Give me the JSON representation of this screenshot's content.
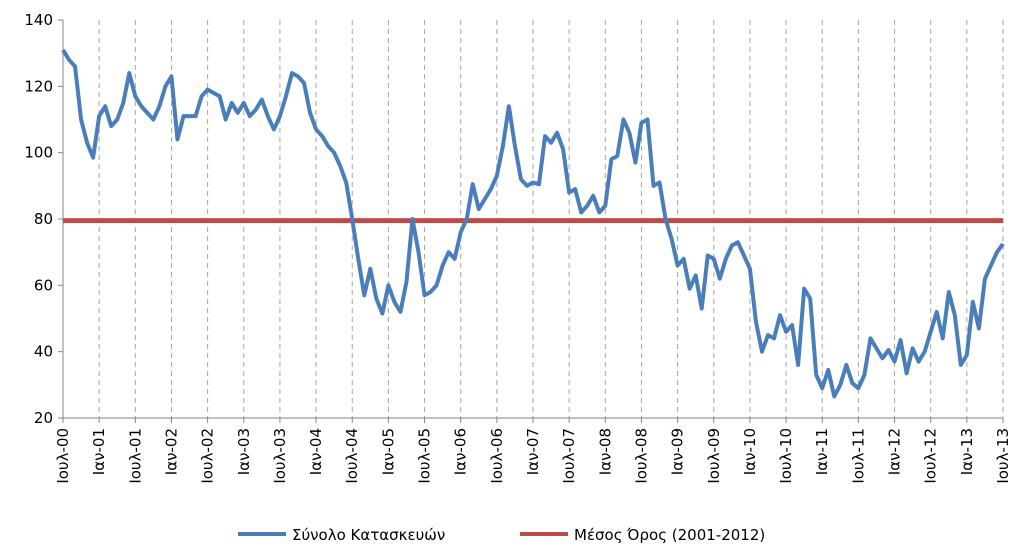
{
  "chart_data": {
    "type": "line",
    "categories": [
      "Ιουλ-00",
      null,
      null,
      null,
      null,
      null,
      "Ιαν-01",
      null,
      null,
      null,
      null,
      null,
      "Ιουλ-01",
      null,
      null,
      null,
      null,
      null,
      "Ιαν-02",
      null,
      null,
      null,
      null,
      null,
      "Ιουλ-02",
      null,
      null,
      null,
      null,
      null,
      "Ιαν-03",
      null,
      null,
      null,
      null,
      null,
      "Ιουλ-03",
      null,
      null,
      null,
      null,
      null,
      "Ιαν-04",
      null,
      null,
      null,
      null,
      null,
      "Ιουλ-04",
      null,
      null,
      null,
      null,
      null,
      "Ιαν-05",
      null,
      null,
      null,
      null,
      null,
      "Ιουλ-05",
      null,
      null,
      null,
      null,
      null,
      "Ιαν-06",
      null,
      null,
      null,
      null,
      null,
      "Ιουλ-06",
      null,
      null,
      null,
      null,
      null,
      "Ιαν-07",
      null,
      null,
      null,
      null,
      null,
      "Ιουλ-07",
      null,
      null,
      null,
      null,
      null,
      "Ιαν-08",
      null,
      null,
      null,
      null,
      null,
      "Ιουλ-08",
      null,
      null,
      null,
      null,
      null,
      "Ιαν-09",
      null,
      null,
      null,
      null,
      null,
      "Ιουλ-09",
      null,
      null,
      null,
      null,
      null,
      "Ιαν-10",
      null,
      null,
      null,
      null,
      null,
      "Ιουλ-10",
      null,
      null,
      null,
      null,
      null,
      "Ιαν-11",
      null,
      null,
      null,
      null,
      null,
      "Ιουλ-11",
      null,
      null,
      null,
      null,
      null,
      "Ιαν-12",
      null,
      null,
      null,
      null,
      null,
      "Ιουλ-12",
      null,
      null,
      null,
      null,
      null,
      "Ιαν-13",
      null,
      null,
      null,
      null,
      null,
      "Ιουλ-13"
    ],
    "series": [
      {
        "name": "Σύνολο Κατασκευών",
        "color": "#4a7ebb",
        "values": [
          131,
          128,
          126,
          110,
          103,
          98.5,
          111,
          114,
          108,
          110,
          115,
          124,
          117,
          114,
          112,
          110,
          114,
          120,
          123,
          104,
          111,
          111,
          111,
          117,
          119,
          118,
          117,
          110,
          115,
          112,
          115,
          111,
          113,
          116,
          111,
          107,
          111,
          117,
          124,
          123,
          121,
          112,
          107,
          105,
          102,
          100,
          96,
          91,
          80,
          68,
          57,
          65,
          56,
          51.5,
          60,
          55,
          52,
          61,
          80,
          70,
          57,
          58,
          60,
          66,
          70,
          68,
          76,
          80,
          90.5,
          83,
          86,
          89,
          93,
          102,
          114,
          102,
          92,
          90,
          91,
          90.5,
          105,
          103,
          106,
          101,
          88,
          89,
          82,
          84,
          87,
          82,
          84,
          98,
          99,
          110,
          106,
          97,
          109,
          110,
          90,
          91,
          80,
          74,
          66,
          68,
          59,
          63,
          53,
          69,
          68,
          62,
          68,
          72,
          73,
          69,
          65,
          49,
          40,
          45,
          44,
          51,
          46,
          48,
          36,
          59,
          56,
          33,
          29,
          34.5,
          26.5,
          30,
          36,
          30.5,
          29,
          33,
          44,
          41,
          38,
          40.5,
          37,
          43.5,
          33.5,
          41,
          37,
          40,
          46,
          52,
          44,
          58,
          51,
          36,
          39,
          55,
          47,
          62,
          66,
          70,
          72.5
        ]
      },
      {
        "name": "Μέσος Όρος (2001-2012)",
        "color": "#be4b48",
        "values": [
          79.5,
          79.5,
          79.5,
          79.5,
          79.5,
          79.5,
          79.5,
          79.5,
          79.5,
          79.5,
          79.5,
          79.5,
          79.5,
          79.5,
          79.5,
          79.5,
          79.5,
          79.5,
          79.5,
          79.5,
          79.5,
          79.5,
          79.5,
          79.5,
          79.5,
          79.5,
          79.5,
          79.5,
          79.5,
          79.5,
          79.5,
          79.5,
          79.5,
          79.5,
          79.5,
          79.5,
          79.5,
          79.5,
          79.5,
          79.5,
          79.5,
          79.5,
          79.5,
          79.5,
          79.5,
          79.5,
          79.5,
          79.5,
          79.5,
          79.5,
          79.5,
          79.5,
          79.5,
          79.5,
          79.5,
          79.5,
          79.5,
          79.5,
          79.5,
          79.5,
          79.5,
          79.5,
          79.5,
          79.5,
          79.5,
          79.5,
          79.5,
          79.5,
          79.5,
          79.5,
          79.5,
          79.5,
          79.5,
          79.5,
          79.5,
          79.5,
          79.5,
          79.5,
          79.5,
          79.5,
          79.5,
          79.5,
          79.5,
          79.5,
          79.5,
          79.5,
          79.5,
          79.5,
          79.5,
          79.5,
          79.5,
          79.5,
          79.5,
          79.5,
          79.5,
          79.5,
          79.5,
          79.5,
          79.5,
          79.5,
          79.5,
          79.5,
          79.5,
          79.5,
          79.5,
          79.5,
          79.5,
          79.5,
          79.5,
          79.5,
          79.5,
          79.5,
          79.5,
          79.5,
          79.5,
          79.5,
          79.5,
          79.5,
          79.5,
          79.5,
          79.5,
          79.5,
          79.5,
          79.5,
          79.5,
          79.5,
          79.5,
          79.5,
          79.5,
          79.5,
          79.5,
          79.5,
          79.5,
          79.5,
          79.5,
          79.5,
          79.5,
          79.5,
          79.5,
          79.5,
          79.5,
          79.5,
          79.5,
          79.5,
          79.5,
          79.5,
          79.5,
          79.5,
          79.5,
          79.5,
          79.5,
          79.5,
          79.5,
          79.5,
          79.5,
          79.5,
          79.5
        ]
      }
    ],
    "ylim": [
      20,
      140
    ],
    "yticks": [
      20,
      40,
      60,
      80,
      100,
      120,
      140
    ],
    "grid": true
  }
}
